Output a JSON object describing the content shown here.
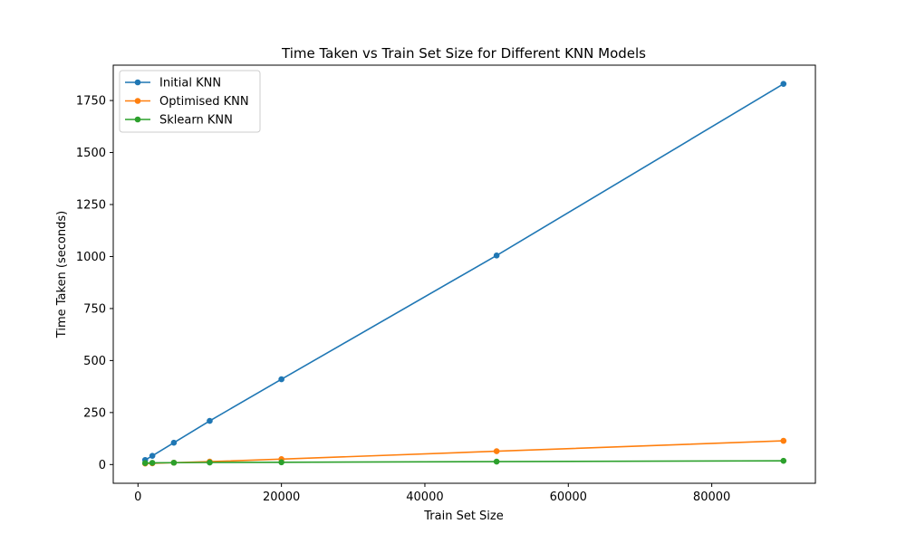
{
  "chart_data": {
    "type": "line",
    "title": "Time Taken vs Train Set Size for Different KNN Models",
    "xlabel": "Train Set Size",
    "ylabel": "Time Taken (seconds)",
    "x": [
      1000,
      2000,
      5000,
      10000,
      20000,
      50000,
      90000
    ],
    "xlim": [
      -3450,
      94450
    ],
    "ylim": [
      -90,
      1920
    ],
    "xticks": [
      0,
      20000,
      40000,
      60000,
      80000
    ],
    "yticks": [
      0,
      250,
      500,
      750,
      1000,
      1250,
      1500,
      1750
    ],
    "legend_position": "top-left",
    "grid": false,
    "series": [
      {
        "name": "Initial KNN",
        "color": "#1f77b4",
        "values": [
          22,
          42,
          105,
          210,
          410,
          1005,
          1830
        ]
      },
      {
        "name": "Optimised KNN",
        "color": "#ff7f0e",
        "values": [
          5,
          6,
          9,
          14,
          26,
          64,
          114
        ]
      },
      {
        "name": "Sklearn KNN",
        "color": "#2ca02c",
        "values": [
          7,
          8,
          9,
          10,
          11,
          14,
          18
        ]
      }
    ]
  }
}
